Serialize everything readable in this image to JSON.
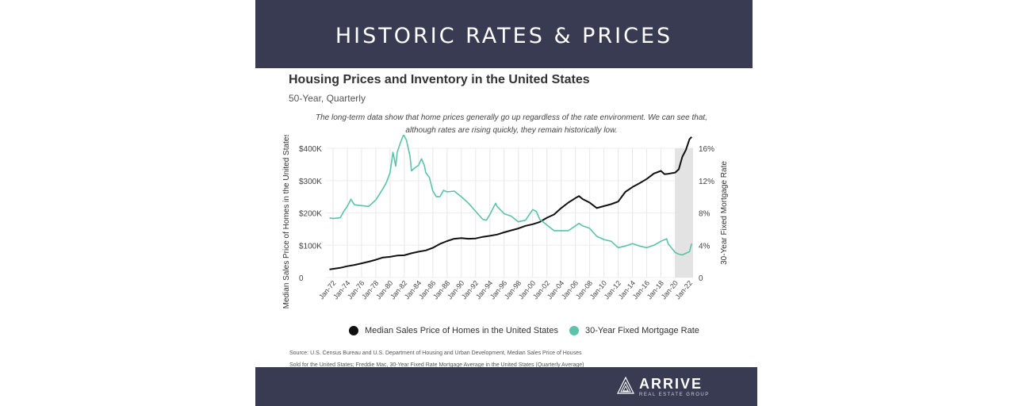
{
  "banner": {
    "title": "HISTORIC RATES & PRICES"
  },
  "chart_data": {
    "type": "line",
    "title": "Housing Prices and Inventory in the United States",
    "subtitle": "50-Year, Quarterly",
    "note_line1": "The long-term data show that home prices generally go up regardless of the rate environment. We can see that,",
    "note_line2": "although rates are rising quickly, they remain historically low.",
    "ylabel_left": "Median Sales Price of Homes in the United States",
    "ylabel_right": "30-Year Fixed Mortgage Rate",
    "yticks_left": [
      "0",
      "$100K",
      "$200K",
      "$300K",
      "$400K"
    ],
    "yticks_right": [
      "0",
      "4%",
      "8%",
      "12%",
      "16%"
    ],
    "ylim_left": [
      0,
      400000
    ],
    "ylim_right": [
      0,
      16
    ],
    "xlim": [
      1971,
      2022.5
    ],
    "xticks": [
      "Jan-72",
      "Jan-74",
      "Jan-76",
      "Jan-78",
      "Jan-80",
      "Jan-82",
      "Jan-84",
      "Jan-86",
      "Jan-88",
      "Jan-90",
      "Jan-92",
      "Jan-94",
      "Jan-96",
      "Jan-98",
      "Jan-00",
      "Jan-02",
      "Jan-04",
      "Jan-06",
      "Jan-08",
      "Jan-10",
      "Jan-12",
      "Jan-14",
      "Jan-16",
      "Jan-18",
      "Jan-20",
      "Jan-22"
    ],
    "shaded_region": [
      2020,
      2022.5
    ],
    "series": [
      {
        "name": "Median Sales Price of Homes in the United States",
        "axis": "left",
        "color": "#111111",
        "x": [
          1971.5,
          1973,
          1974,
          1975,
          1976,
          1977,
          1978,
          1979,
          1980,
          1981,
          1982,
          1983,
          1984,
          1985,
          1986,
          1987,
          1988,
          1989,
          1990,
          1991,
          1992,
          1993,
          1994,
          1995,
          1996,
          1997,
          1998,
          1999,
          2000,
          2001,
          2002,
          2003,
          2004,
          2005,
          2006,
          2006.5,
          2007,
          2008,
          2009,
          2010,
          2011,
          2012,
          2013,
          2014,
          2015,
          2016,
          2017,
          2018,
          2018.5,
          2019,
          2020,
          2020.5,
          2021,
          2021.5,
          2022,
          2022.3
        ],
        "values": [
          25000,
          30000,
          35000,
          39000,
          44000,
          49000,
          55000,
          62000,
          64000,
          68000,
          69000,
          75000,
          80000,
          84000,
          92000,
          104000,
          113000,
          120000,
          122000,
          120000,
          121000,
          126000,
          129000,
          133000,
          140000,
          146000,
          152000,
          160000,
          165000,
          172000,
          185000,
          195000,
          215000,
          232000,
          246000,
          252000,
          243000,
          232000,
          215000,
          221000,
          227000,
          235000,
          265000,
          280000,
          292000,
          305000,
          322000,
          330000,
          320000,
          321000,
          325000,
          335000,
          374000,
          395000,
          428000,
          435000
        ]
      },
      {
        "name": "30-Year Fixed Mortgage Rate",
        "axis": "right",
        "color": "#5bc2ab",
        "x": [
          1971.5,
          1972,
          1973,
          1973.5,
          1974,
          1974.5,
          1975,
          1976,
          1977,
          1978,
          1978.5,
          1979,
          1979.5,
          1980,
          1980.4,
          1980.8,
          1981,
          1981.5,
          1981.9,
          1982.3,
          1982.8,
          1983,
          1983.5,
          1984,
          1984.4,
          1984.8,
          1985,
          1985.5,
          1986,
          1986.5,
          1987,
          1987.5,
          1988,
          1989,
          1990,
          1991,
          1992,
          1993,
          1993.5,
          1994,
          1994.8,
          1995,
          1996,
          1997,
          1998,
          1999,
          2000,
          2000.5,
          2001,
          2002,
          2003,
          2004,
          2005,
          2006,
          2006.5,
          2007,
          2008,
          2009,
          2010,
          2011,
          2012,
          2013,
          2014,
          2015,
          2016,
          2017,
          2018,
          2018.8,
          2019,
          2020,
          2020.5,
          2021,
          2021.5,
          2022,
          2022.3
        ],
        "values": [
          7.4,
          7.3,
          7.4,
          8.2,
          8.8,
          9.7,
          9.0,
          8.9,
          8.8,
          9.6,
          10.3,
          11.0,
          11.8,
          13.0,
          15.5,
          13.8,
          15.5,
          16.8,
          17.7,
          17.0,
          15.0,
          13.2,
          13.6,
          13.9,
          14.7,
          13.9,
          13.0,
          12.4,
          10.7,
          10.0,
          10.0,
          10.8,
          10.6,
          10.7,
          10.0,
          9.2,
          8.2,
          7.2,
          7.1,
          7.8,
          9.2,
          8.8,
          7.9,
          7.6,
          6.9,
          7.1,
          8.4,
          8.2,
          7.2,
          6.5,
          5.8,
          5.8,
          5.8,
          6.4,
          6.7,
          6.4,
          6.1,
          5.1,
          4.7,
          4.5,
          3.7,
          3.9,
          4.2,
          3.9,
          3.7,
          4.0,
          4.5,
          4.8,
          4.2,
          3.1,
          2.9,
          2.8,
          3.0,
          3.2,
          4.2
        ]
      }
    ]
  },
  "legend": [
    {
      "label": "Median Sales Price of Homes in the United States",
      "color": "#111111"
    },
    {
      "label": "30-Year Fixed Mortgage Rate",
      "color": "#5bc2ab"
    }
  ],
  "source": {
    "line1": "Source:  U.S. Census Bureau and U.S. Department of Housing and Urban Development, Median Sales Price of Houses",
    "line2": "Sold for the United States; Freddie Mac, 30-Year Fixed Rate Mortgage Average in the United States (Quarterly Average)"
  },
  "footer": {
    "brand": "ARRIVE",
    "brand_sub": "REAL ESTATE GROUP"
  }
}
